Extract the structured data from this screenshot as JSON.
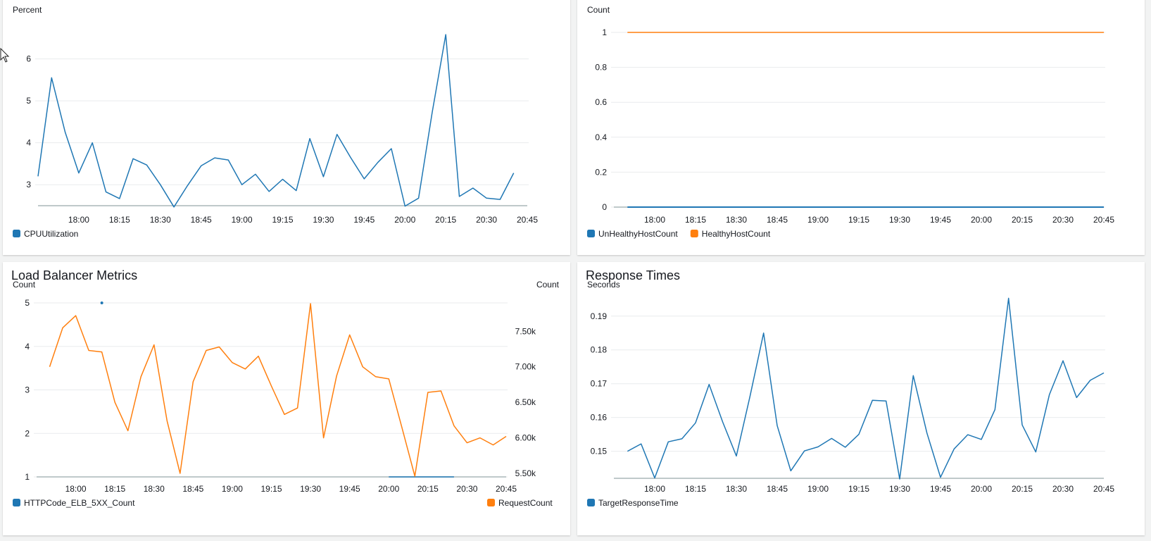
{
  "panels": [
    {
      "id": "cpu",
      "title": "",
      "chart_data": {
        "type": "line",
        "ylabel_left": "Percent",
        "ylim_left": [
          2.5,
          6.9
        ],
        "yticks_left": [
          3,
          4,
          5,
          6
        ],
        "x_tick_labels": [
          "18:00",
          "18:15",
          "18:30",
          "18:45",
          "19:00",
          "19:15",
          "19:30",
          "19:45",
          "20:00",
          "20:15",
          "20:30",
          "20:45"
        ],
        "series": [
          {
            "name": "CPUUtilization",
            "color": "#1f77b4",
            "axis": "left",
            "start": "17:45",
            "step_min": 5,
            "values": [
              3.2,
              5.55,
              4.25,
              3.28,
              4.0,
              2.83,
              2.67,
              3.62,
              3.47,
              3.0,
              2.47,
              2.98,
              3.45,
              3.64,
              3.59,
              3.0,
              3.25,
              2.84,
              3.13,
              2.86,
              4.1,
              3.19,
              4.2,
              3.65,
              3.14,
              3.53,
              3.86,
              2.49,
              2.68,
              4.72,
              6.58,
              2.72,
              2.92,
              2.68,
              2.65,
              3.28
            ]
          }
        ],
        "legend": "bottom-left"
      }
    },
    {
      "id": "hosts",
      "title": "",
      "chart_data": {
        "type": "line",
        "ylabel_left": "Count",
        "ylim_left": [
          0,
          1
        ],
        "yticks_left": [
          0,
          0.2,
          0.4,
          0.6,
          0.8,
          1
        ],
        "ytick_labels_left": [
          "0",
          "0.2",
          "0.4",
          "0.6",
          "0.8",
          "1"
        ],
        "x_tick_labels": [
          "18:00",
          "18:15",
          "18:30",
          "18:45",
          "19:00",
          "19:15",
          "19:30",
          "19:45",
          "20:00",
          "20:15",
          "20:30",
          "20:45"
        ],
        "series": [
          {
            "name": "UnHealthyHostCount",
            "color": "#1f77b4",
            "axis": "left",
            "start": "17:50",
            "step_min": 5,
            "values": [
              0,
              0,
              0,
              0,
              0,
              0,
              0,
              0,
              0,
              0,
              0,
              0,
              0,
              0,
              0,
              0,
              0,
              0,
              0,
              0,
              0,
              0,
              0,
              0,
              0,
              0,
              0,
              0,
              0,
              0,
              0,
              0,
              0,
              0,
              0,
              0
            ]
          },
          {
            "name": "HealthyHostCount",
            "color": "#ff7f0e",
            "axis": "left",
            "start": "17:50",
            "step_min": 5,
            "values": [
              1,
              1,
              1,
              1,
              1,
              1,
              1,
              1,
              1,
              1,
              1,
              1,
              1,
              1,
              1,
              1,
              1,
              1,
              1,
              1,
              1,
              1,
              1,
              1,
              1,
              1,
              1,
              1,
              1,
              1,
              1,
              1,
              1,
              1,
              1,
              1
            ]
          }
        ],
        "legend": "bottom-left"
      }
    },
    {
      "id": "lb",
      "title": "Load Balancer Metrics",
      "chart_data": {
        "type": "line",
        "ylabel_left": "Count",
        "ylabel_right": "Count",
        "ylim_left": [
          1,
          5
        ],
        "yticks_left": [
          1,
          2,
          3,
          4,
          5
        ],
        "ylim_right": [
          5450,
          7900
        ],
        "yticks_right": [
          5500,
          6000,
          6500,
          7000,
          7500
        ],
        "ytick_labels_right": [
          "5.50k",
          "6.00k",
          "6.50k",
          "7.00k",
          "7.50k"
        ],
        "x_tick_labels": [
          "18:00",
          "18:15",
          "18:30",
          "18:45",
          "19:00",
          "19:15",
          "19:30",
          "19:45",
          "20:00",
          "20:15",
          "20:30",
          "20:45"
        ],
        "series": [
          {
            "name": "HTTPCode_ELB_5XX_Count",
            "color": "#1f77b4",
            "axis": "left",
            "start": "17:55",
            "step_min": 5,
            "values": [
              null,
              null,
              null,
              5,
              null,
              null,
              null,
              null,
              null,
              null,
              null,
              null,
              null,
              null,
              null,
              null,
              null,
              null,
              null,
              null,
              null,
              null,
              null,
              null,
              null,
              1,
              1,
              1,
              1,
              1,
              1,
              null,
              null,
              null,
              null
            ]
          },
          {
            "name": "RequestCount",
            "color": "#ff7f0e",
            "axis": "right",
            "start": "17:50",
            "step_min": 5,
            "values": [
              7.0,
              7.55,
              7.72,
              7.23,
              7.21,
              6.5,
              6.1,
              6.86,
              7.31,
              6.24,
              5.5,
              6.79,
              7.23,
              7.28,
              7.06,
              6.97,
              7.15,
              6.73,
              6.33,
              6.42,
              7.89,
              6.0,
              6.87,
              7.45,
              7.0,
              6.86,
              6.83,
              6.15,
              5.46,
              6.64,
              6.66,
              6.17,
              5.93,
              6.0,
              5.9,
              6.02
            ]
          }
        ],
        "legend": "bottom"
      }
    },
    {
      "id": "rt",
      "title": "Response Times",
      "chart_data": {
        "type": "line",
        "ylabel_left": "Seconds",
        "ylim_left": [
          0.142,
          0.196
        ],
        "yticks_left": [
          0.15,
          0.16,
          0.17,
          0.18,
          0.19
        ],
        "x_tick_labels": [
          "18:00",
          "18:15",
          "18:30",
          "18:45",
          "19:00",
          "19:15",
          "19:30",
          "19:45",
          "20:00",
          "20:15",
          "20:30",
          "20:45"
        ],
        "series": [
          {
            "name": "TargetResponseTime",
            "color": "#1f77b4",
            "axis": "left",
            "start": "17:50",
            "step_min": 5,
            "values": [
              0.15,
              0.1522,
              0.1421,
              0.1528,
              0.1537,
              0.1584,
              0.1698,
              0.1586,
              0.1486,
              0.1662,
              0.185,
              0.1576,
              0.1442,
              0.1501,
              0.1513,
              0.1538,
              0.1512,
              0.155,
              0.1651,
              0.1649,
              0.1418,
              0.1724,
              0.1554,
              0.1423,
              0.1507,
              0.1549,
              0.1535,
              0.1623,
              0.1953,
              0.1578,
              0.1498,
              0.1668,
              0.1768,
              0.1659,
              0.171,
              0.1732
            ]
          }
        ],
        "legend": "bottom-left"
      }
    }
  ]
}
